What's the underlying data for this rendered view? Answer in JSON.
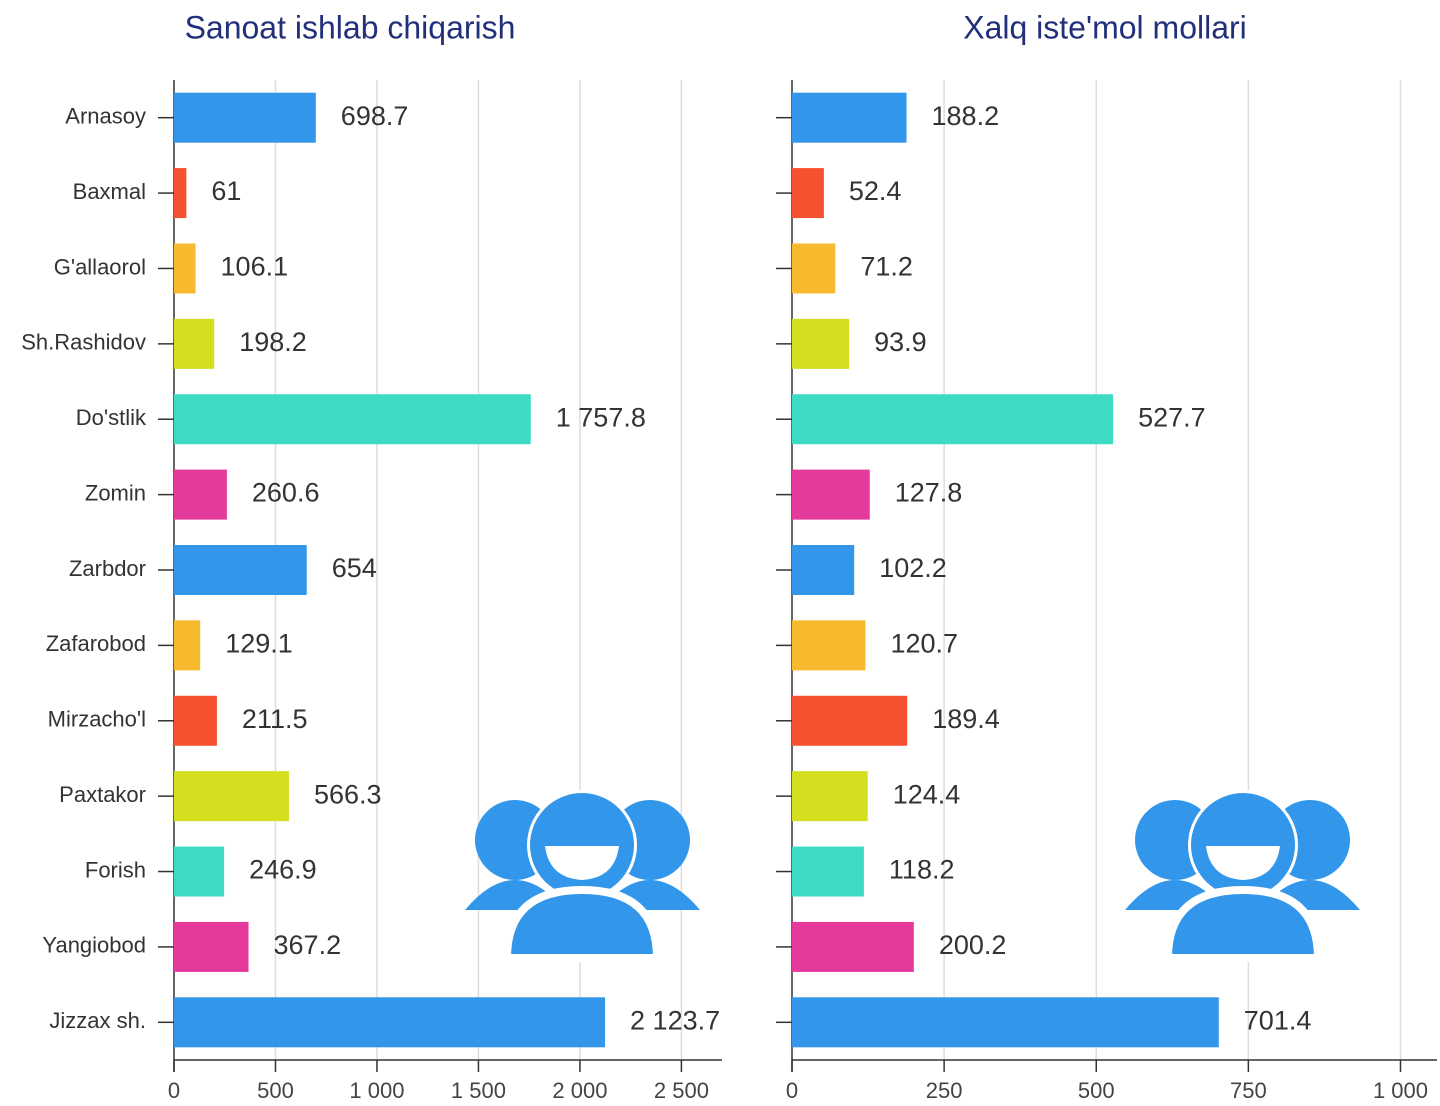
{
  "chart_data": [
    {
      "type": "bar",
      "orientation": "horizontal",
      "title": "Sanoat ishlab chiqarish",
      "categories": [
        "Arnasoy",
        "Baxmal",
        "G'allaorol",
        "Sh.Rashidov",
        "Do'stlik",
        "Zomin",
        "Zarbdor",
        "Zafarobod",
        "Mirzacho'l",
        "Paxtakor",
        "Forish",
        "Yangiobod",
        "Jizzax sh."
      ],
      "values": [
        698.7,
        61,
        106.1,
        198.2,
        1757.8,
        260.6,
        654,
        129.1,
        211.5,
        566.3,
        246.9,
        367.2,
        2123.7
      ],
      "value_labels": [
        "698.7",
        "61",
        "106.1",
        "198.2",
        "1 757.8",
        "260.6",
        "654",
        "129.1",
        "211.5",
        "566.3",
        "246.9",
        "367.2",
        "2 123.7"
      ],
      "colors": [
        "#3296ea",
        "#f65130",
        "#f7b92e",
        "#d4df1f",
        "#3ddbc4",
        "#e43a9c",
        "#3296ea",
        "#f7b92e",
        "#f65130",
        "#d4df1f",
        "#3ddbc4",
        "#e43a9c",
        "#3296ea"
      ],
      "xlim": [
        0,
        2700
      ],
      "xticks": [
        0,
        500,
        {
          "value": 1000,
          "label": "1 000"
        },
        {
          "value": 1500,
          "label": "1 500"
        },
        {
          "value": 2000,
          "label": "2 000"
        },
        {
          "value": 2500,
          "label": "2 500"
        }
      ],
      "grid": true
    },
    {
      "type": "bar",
      "orientation": "horizontal",
      "title": "Xalq iste'mol mollari",
      "values": [
        188.2,
        52.4,
        71.2,
        93.9,
        527.7,
        127.8,
        102.2,
        120.7,
        189.4,
        124.4,
        118.2,
        200.2,
        701.4
      ],
      "colors": [
        "#3296ea",
        "#f65130",
        "#f7b92e",
        "#d4df1f",
        "#3ddbc4",
        "#e43a9c",
        "#3296ea",
        "#f7b92e",
        "#f65130",
        "#d4df1f",
        "#3ddbc4",
        "#e43a9c",
        "#3296ea"
      ],
      "xlim": [
        0,
        1060
      ],
      "xticks": [
        0,
        250,
        500,
        750,
        {
          "value": 1000,
          "label": "1 000"
        }
      ],
      "grid": true
    }
  ]
}
